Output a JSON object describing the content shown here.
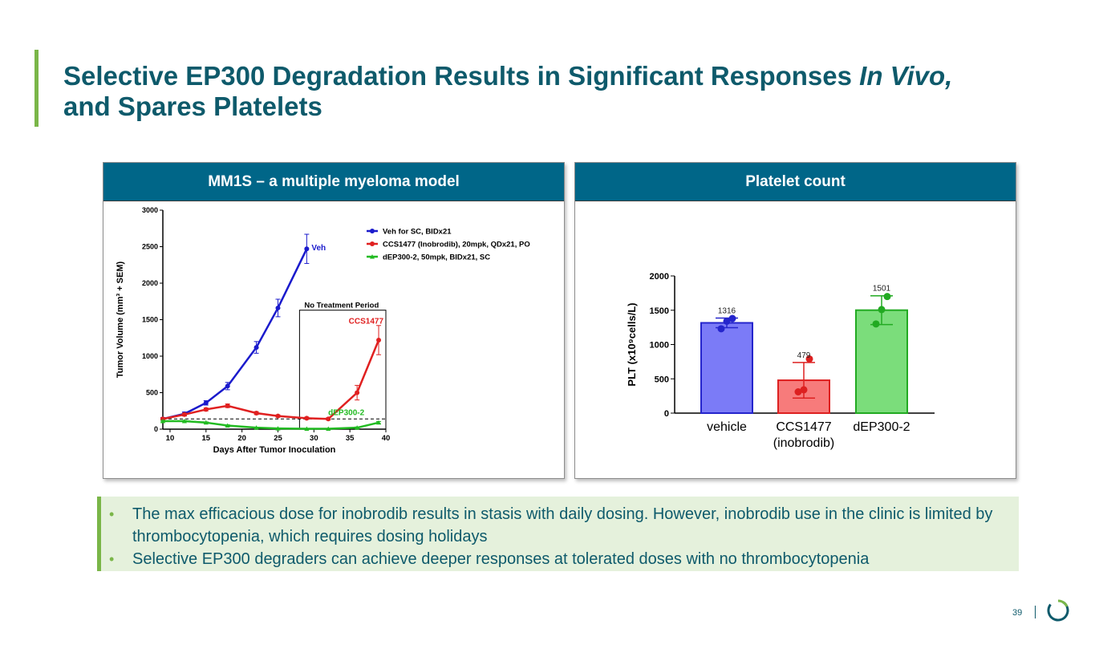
{
  "slide": {
    "title_main": "Selective EP300 Degradation Results in Significant Responses ",
    "title_italic": "In Vivo,",
    "title_line2": "and Spares Platelets",
    "page_number": "39"
  },
  "colors": {
    "title": "#0e5a6b",
    "accent_green": "#7ab648",
    "panel_header": "#006688",
    "bullet_box": "#e5f1dc",
    "series_blue": "#1a1acc",
    "series_red": "#e02020",
    "series_green": "#22bb22"
  },
  "bullets": [
    "The max efficacious dose for inobrodib results in stasis with daily dosing. However, inobrodib use in the clinic is limited by thrombocytopenia, which requires dosing holidays",
    "Selective EP300 degraders can achieve deeper responses at tolerated doses with no thrombocytopenia"
  ],
  "chart_data": [
    {
      "type": "line",
      "panel_title": "MM1S – a multiple myeloma model",
      "xlabel": "Days After Tumor Inoculation",
      "ylabel": "Tumor Volume (mm³ + SEM)",
      "xlim": [
        9,
        40
      ],
      "ylim": [
        0,
        3000
      ],
      "xticks": [
        "10",
        "15",
        "20",
        "25",
        "30",
        "35",
        "40"
      ],
      "yticks": [
        "0",
        "500",
        "1000",
        "1500",
        "2000",
        "2500",
        "3000"
      ],
      "legend": [
        "Veh for SC, BIDx21",
        "CCS1477 (Inobrodib), 20mpk, QDx21, PO",
        "dEP300-2, 50mpk, BIDx21, SC"
      ],
      "annotations": {
        "no_treatment_label": "No Treatment Period",
        "no_treatment_start": 28,
        "no_treatment_end": 40,
        "veh_label": "Veh",
        "ccs_label": "CCS1477",
        "dep_label": "dEP300-2",
        "dashed_line_y": 140
      },
      "series": [
        {
          "name": "Veh for SC, BIDx21",
          "color": "#1a1acc",
          "x": [
            9,
            12,
            15,
            18,
            22,
            25,
            29
          ],
          "y": [
            140,
            210,
            360,
            590,
            1120,
            1660,
            2470
          ],
          "err": [
            20,
            25,
            30,
            50,
            80,
            120,
            200
          ]
        },
        {
          "name": "CCS1477 (Inobrodib), 20mpk, QDx21, PO",
          "color": "#e02020",
          "x": [
            9,
            12,
            15,
            18,
            22,
            25,
            29,
            32,
            36,
            39
          ],
          "y": [
            140,
            200,
            270,
            320,
            220,
            180,
            150,
            140,
            500,
            1220
          ],
          "err": [
            15,
            20,
            20,
            25,
            20,
            15,
            15,
            15,
            100,
            200
          ]
        },
        {
          "name": "dEP300-2, 50mpk, BIDx21, SC",
          "color": "#22bb22",
          "x": [
            9,
            12,
            15,
            18,
            22,
            25,
            29,
            32,
            36,
            39
          ],
          "y": [
            110,
            110,
            90,
            50,
            20,
            10,
            5,
            5,
            20,
            90
          ],
          "err": [
            10,
            10,
            10,
            10,
            5,
            5,
            5,
            5,
            10,
            15
          ]
        }
      ]
    },
    {
      "type": "bar",
      "panel_title": "Platelet count",
      "ylabel": "PLT (x10⁹cells/L)",
      "ylim": [
        0,
        2000
      ],
      "yticks": [
        "0",
        "500",
        "1000",
        "1500",
        "2000"
      ],
      "categories": [
        "vehicle",
        "CCS1477",
        "dEP300-2"
      ],
      "category_sublabels": [
        "",
        "(inobrodib)",
        ""
      ],
      "values": [
        1316,
        479,
        1501
      ],
      "value_labels": [
        "1316",
        "479",
        "1501"
      ],
      "errors": [
        70,
        260,
        210
      ],
      "points": [
        [
          1230,
          1340,
          1380
        ],
        [
          310,
          340,
          790
        ],
        [
          1300,
          1510,
          1700
        ]
      ],
      "bar_colors": [
        "#7b7bf7",
        "#f77b7b",
        "#7bdd7b"
      ],
      "edge_colors": [
        "#2525cc",
        "#dd2020",
        "#22aa22"
      ]
    }
  ]
}
